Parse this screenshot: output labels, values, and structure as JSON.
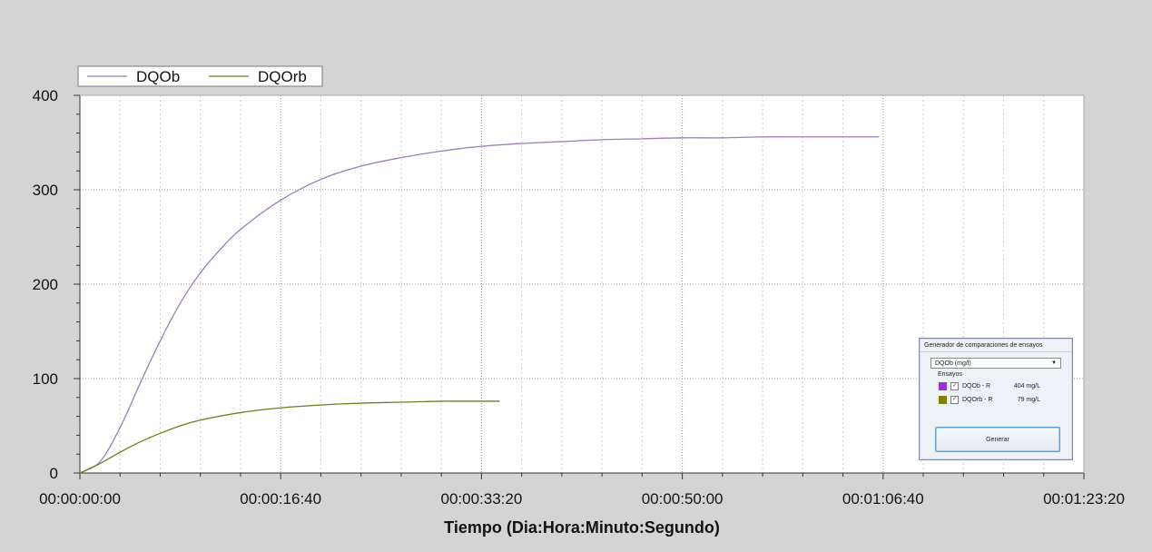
{
  "chart_data": {
    "type": "line",
    "title": "",
    "xlabel": "Tiempo (Dia:Hora:Minuto:Segundo)",
    "ylabel": "",
    "x_unit": "seconds",
    "xlim": [
      0,
      5000
    ],
    "ylim": [
      0,
      400
    ],
    "x_ticks": [
      {
        "value": 0,
        "label": "00:00:00:00"
      },
      {
        "value": 1000,
        "label": "00:00:16:40"
      },
      {
        "value": 2000,
        "label": "00:00:33:20"
      },
      {
        "value": 3000,
        "label": "00:00:50:00"
      },
      {
        "value": 4000,
        "label": "00:01:06:40"
      },
      {
        "value": 5000,
        "label": "00:01:23:20"
      }
    ],
    "y_ticks": [
      {
        "value": 0,
        "label": "0"
      },
      {
        "value": 100,
        "label": "100"
      },
      {
        "value": 200,
        "label": "200"
      },
      {
        "value": 300,
        "label": "300"
      },
      {
        "value": 400,
        "label": "400"
      }
    ],
    "grid": true,
    "legend_position": "top-left",
    "series": [
      {
        "name": "DQOb",
        "color": "#9b7fb8",
        "x": [
          0,
          100,
          200,
          300,
          400,
          500,
          600,
          700,
          800,
          1000,
          1200,
          1400,
          1600,
          1800,
          2000,
          2200,
          2400,
          2600,
          2800,
          3000,
          3200,
          3400,
          3600,
          3800,
          3980
        ],
        "y": [
          0,
          12,
          48,
          95,
          140,
          180,
          212,
          237,
          258,
          289,
          311,
          325,
          334,
          341,
          346,
          349,
          351,
          353,
          354,
          355,
          355,
          356,
          356,
          356,
          356
        ]
      },
      {
        "name": "DQOrb",
        "color": "#6f7d1f",
        "x": [
          0,
          100,
          200,
          300,
          400,
          500,
          600,
          800,
          1000,
          1200,
          1400,
          1600,
          1800,
          1900,
          2090
        ],
        "y": [
          0,
          10,
          22,
          33,
          42,
          50,
          56,
          64,
          69,
          72,
          74,
          75,
          76,
          76,
          76
        ]
      }
    ]
  },
  "panel": {
    "title": "Generador de comparaciones de ensayos",
    "dropdown_value": "DQOb (mg/l)",
    "group_label": "Ensayos",
    "assays": [
      {
        "name": "DQOb - R",
        "value": "404 mg/L",
        "color": "#9b30d8",
        "checked": true
      },
      {
        "name": "DQOrb - R",
        "value": "79 mg/L",
        "color": "#7f7f00",
        "checked": true
      }
    ],
    "generate_label": "Generar"
  }
}
